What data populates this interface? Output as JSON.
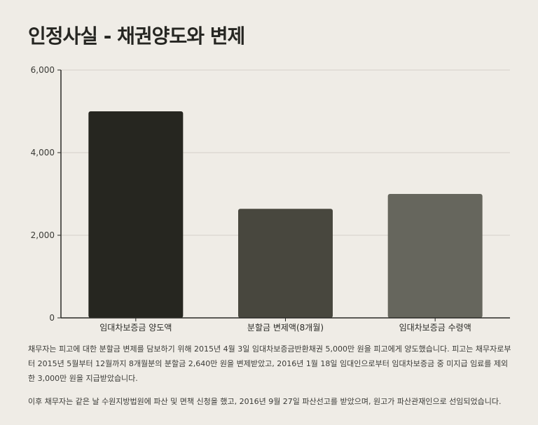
{
  "title": "인정사실 - 채권양도와 변제",
  "chart_data": {
    "type": "bar",
    "title": "인정사실 - 채권양도와 변제",
    "categories": [
      "임대차보증금 양도액",
      "분할금 변제액(8개월)",
      "임대차보증금 수령액"
    ],
    "values": [
      5000,
      2640,
      3000
    ],
    "colors": [
      "#262620",
      "#48473e",
      "#66665d"
    ],
    "xlabel": "",
    "ylabel": "",
    "ylim": [
      0,
      6000
    ],
    "yticks": [
      0,
      2000,
      4000,
      6000
    ],
    "ytick_labels": [
      "0",
      "2,000",
      "4,000",
      "6,000"
    ],
    "grid": true,
    "legend": "none"
  },
  "notes": [
    "채무자는 피고에 대한 분할금 변제를 담보하기 위해 2015년 4월 3일 임대차보증금반환채권 5,000만 원을 피고에게 양도했습니다. 피고는 채무자로부터 2015년 5월부터 12월까지 8개월분의 분할금 2,640만 원을 변제받았고, 2016년 1월 18일 임대인으로부터 임대차보증금 중 미지급 임료를 제외한 3,000만 원을 지급받았습니다.",
    "이후 채무자는 같은 날 수원지방법원에 파산 및 면책 신청을 했고, 2016년 9월 27일 파산선고를 받았으며, 원고가 파산관재인으로 선임되었습니다."
  ]
}
